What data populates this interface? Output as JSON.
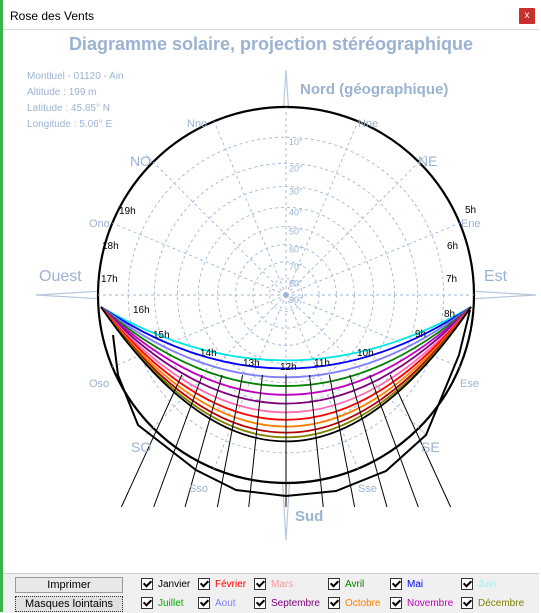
{
  "window": {
    "title": "Rose des Vents",
    "close_label": "x"
  },
  "chart": {
    "title": "Diagramme solaire, projection stéréographique",
    "info": [
      "Montluel - 01120 - Ain",
      "Altitude : 199 m",
      "Latitude : 45.85° N",
      "Longitude : 5.06° E"
    ],
    "north_label": "Nord (géographique)",
    "directions": {
      "nne": "Nne",
      "nno": "Nno",
      "no": "NO",
      "ne": "NE",
      "ono": "Ono",
      "ene": "Ene",
      "ouest": "Ouest",
      "est": "Est",
      "oso": "Oso",
      "ese": "Ese",
      "so": "SO",
      "se": "SE",
      "sso": "Sso",
      "sse": "Sse",
      "sud": "Sud"
    },
    "altitude_labels": [
      "10°",
      "20°",
      "30°",
      "40°",
      "50°",
      "60°",
      "70°",
      "80°",
      "90°"
    ],
    "hour_labels": [
      "5h",
      "6h",
      "7h",
      "8h",
      "9h",
      "10h",
      "11h",
      "12h",
      "13h",
      "14h",
      "15h",
      "16h",
      "17h",
      "18h",
      "19h"
    ]
  },
  "chart_data": {
    "type": "line",
    "title": "Diagramme solaire, projection stéréographique",
    "projection": "stereographic",
    "altitude_rings_deg": [
      10,
      20,
      30,
      40,
      50,
      60,
      70,
      80,
      90
    ],
    "hours": [
      "5h",
      "6h",
      "7h",
      "8h",
      "9h",
      "10h",
      "11h",
      "12h",
      "13h",
      "14h",
      "15h",
      "16h",
      "17h",
      "18h",
      "19h"
    ],
    "series": [
      {
        "name": "Janvier",
        "color": "#8b0000"
      },
      {
        "name": "Février",
        "color": "#ff0000"
      },
      {
        "name": "Mars",
        "color": "#ffa0a0"
      },
      {
        "name": "Avril",
        "color": "#228b22"
      },
      {
        "name": "Mai",
        "color": "#0000ff"
      },
      {
        "name": "Juin",
        "color": "#00ffff"
      },
      {
        "name": "Juillet",
        "color": "#32cd32"
      },
      {
        "name": "Aout",
        "color": "#8080ff"
      },
      {
        "name": "Septembre",
        "color": "#800080"
      },
      {
        "name": "Octobre",
        "color": "#ff8c00"
      },
      {
        "name": "Novembre",
        "color": "#c000c0"
      },
      {
        "name": "Décembre",
        "color": "#808000"
      }
    ]
  },
  "bottom": {
    "print_label": "Imprimer",
    "masks_label": "Masques lointains",
    "months": [
      {
        "label": "Janvier",
        "color": "#000000",
        "checked": true
      },
      {
        "label": "Février",
        "color": "#ff0000",
        "checked": true
      },
      {
        "label": "Mars",
        "color": "#ff9999",
        "checked": true
      },
      {
        "label": "Avril",
        "color": "#008000",
        "checked": true
      },
      {
        "label": "Mai",
        "color": "#0000ff",
        "checked": true
      },
      {
        "label": "Juin",
        "color": "#7fffff",
        "checked": true
      },
      {
        "label": "Juillet",
        "color": "#00b000",
        "checked": true
      },
      {
        "label": "Aout",
        "color": "#8080ff",
        "checked": true
      },
      {
        "label": "Septembre",
        "color": "#800080",
        "checked": true
      },
      {
        "label": "Octobre",
        "color": "#ff8000",
        "checked": true
      },
      {
        "label": "Novembre",
        "color": "#c000c0",
        "checked": true
      },
      {
        "label": "Décembre",
        "color": "#808000",
        "checked": true
      }
    ]
  }
}
